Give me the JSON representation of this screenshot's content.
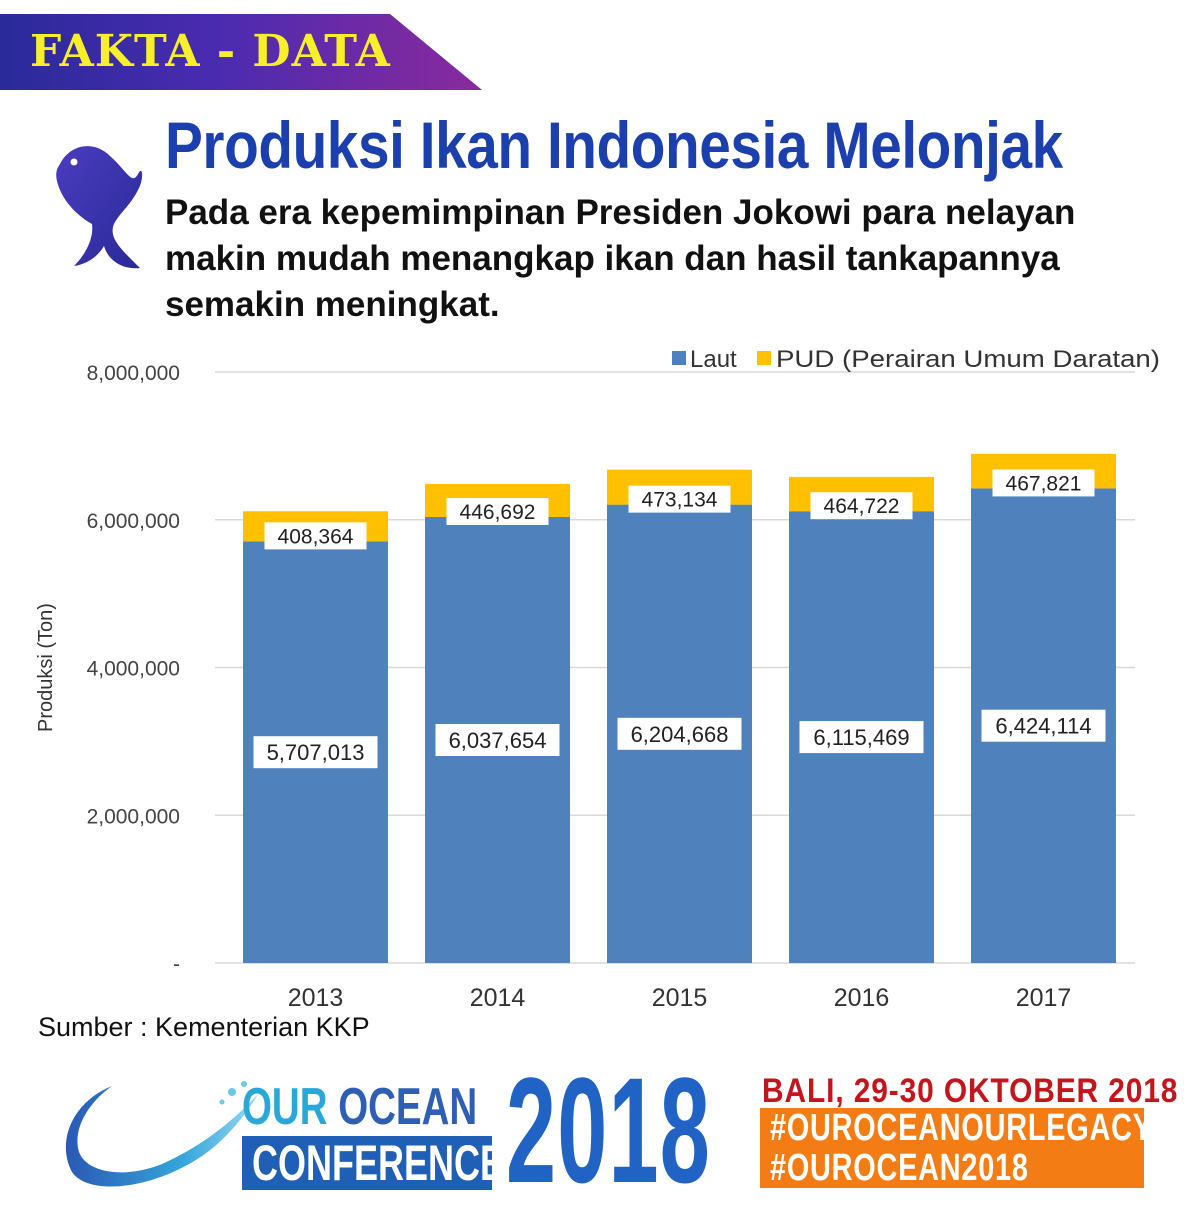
{
  "header": {
    "tag": "FAKTA - DATA",
    "title": "Produksi Ikan Indonesia Melonjak",
    "subtitle": "Pada era kepemimpinan Presiden Jokowi para nelayan makin mudah menangkap ikan dan hasil tankapannya semakin meningkat."
  },
  "chart_data": {
    "type": "bar",
    "stacked": true,
    "categories": [
      "2013",
      "2014",
      "2015",
      "2016",
      "2017"
    ],
    "series": [
      {
        "name": "Laut",
        "values": [
          5707013,
          6037654,
          6204668,
          6115469,
          6424114
        ],
        "color": "#4f81bd"
      },
      {
        "name": "PUD (Perairan Umum Daratan)",
        "values": [
          408364,
          446692,
          473134,
          464722,
          467821
        ],
        "color": "#ffc000"
      }
    ],
    "value_labels": [
      [
        "5,707,013",
        "6,037,654",
        "6,204,668",
        "6,115,469",
        "6,424,114"
      ],
      [
        "408,364",
        "446,692",
        "473,134",
        "464,722",
        "467,821"
      ]
    ],
    "ylabel": "Produksi (Ton)",
    "xlabel": "",
    "ylim": [
      0,
      8000000
    ],
    "yticks": [
      0,
      2000000,
      4000000,
      6000000,
      8000000
    ],
    "ytick_labels": [
      "-",
      "2,000,000",
      "4,000,000",
      "6,000,000",
      "8,000,000"
    ],
    "grid": true,
    "legend_position": "top-right"
  },
  "source": "Sumber : Kementerian KKP",
  "footer": {
    "conf_our": "OUR",
    "conf_ocean": "OCEAN",
    "conf_conference": "CONFERENCE",
    "year": "2018",
    "event_date": "BALI,  29-30 OKTOBER 2018",
    "hashtag_1": "#OUROCEANOURLEGACY",
    "hashtag_2": "#OUROCEAN2018"
  },
  "colors": {
    "title_blue": "#1c3fae",
    "tag_yellow": "#f7ef2a",
    "year_blue": "#2163c4",
    "date_red": "#c3161c",
    "hashtag_orange": "#f47c14"
  }
}
